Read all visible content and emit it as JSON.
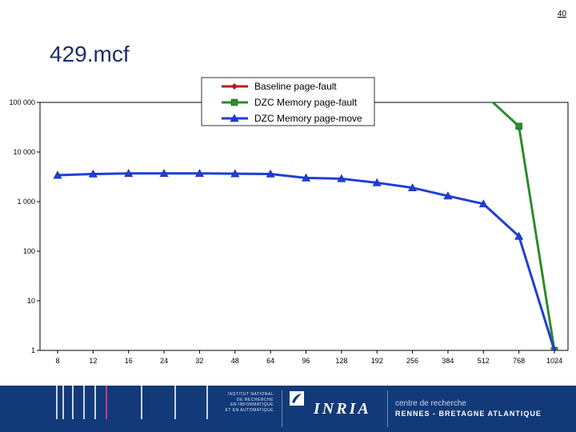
{
  "page_number": "40",
  "title": "429.mcf",
  "footer": {
    "institute_lines": [
      "INSTITUT NATIONAL",
      "DE RECHERCHE",
      "EN INFORMATIQUE",
      "ET EN AUTOMATIQUE"
    ],
    "logo_text": "INRIA",
    "centre_text": "centre de recherche",
    "location_text": "RENNES - BRETAGNE ATLANTIQUE"
  },
  "chart_data": {
    "type": "line",
    "title": "",
    "xlabel": "",
    "ylabel": "",
    "y_scale": "log",
    "ylim": [
      1,
      100000
    ],
    "y_ticks": [
      1,
      10,
      100,
      1000,
      10000,
      100000
    ],
    "y_tick_labels": [
      "1",
      "10",
      "100",
      "1 000",
      "10 000",
      "100 000"
    ],
    "categories": [
      "8",
      "12",
      "16",
      "24",
      "32",
      "48",
      "64",
      "96",
      "128",
      "192",
      "256",
      "384",
      "512",
      "768",
      "1024"
    ],
    "grid": false,
    "legend_position": "top-right",
    "series": [
      {
        "name": "Baseline page-fault",
        "color": "#b01e1e",
        "marker": "diamond",
        "values": [
          null,
          null,
          null,
          null,
          null,
          null,
          null,
          null,
          null,
          null,
          null,
          null,
          null,
          null,
          null
        ]
      },
      {
        "name": "DZC Memory page-fault",
        "color": "#2e8b2e",
        "marker": "square",
        "values": [
          null,
          null,
          null,
          null,
          null,
          null,
          null,
          null,
          null,
          null,
          null,
          null,
          150000,
          33000,
          1
        ]
      },
      {
        "name": "DZC Memory page-move",
        "color": "#1f3fd6",
        "marker": "triangle",
        "values": [
          3400,
          3600,
          3700,
          3700,
          3700,
          3650,
          3600,
          3000,
          2900,
          2400,
          1900,
          1300,
          900,
          200,
          1
        ]
      }
    ]
  }
}
